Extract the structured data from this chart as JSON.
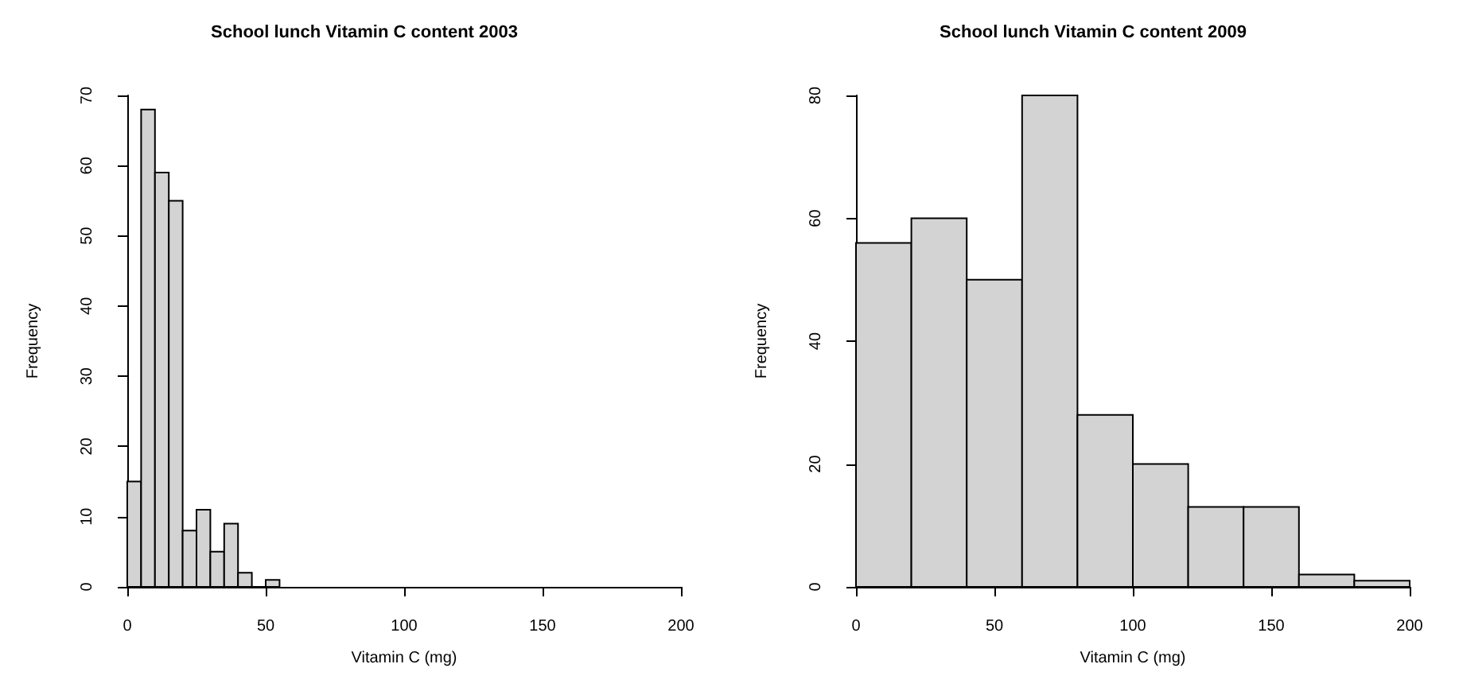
{
  "chart_data": [
    {
      "type": "histogram",
      "title": "School lunch Vitamin C content 2003",
      "xlabel": "Vitamin C (mg)",
      "ylabel": "Frequency",
      "bins": [
        0,
        5,
        10,
        15,
        20,
        25,
        30,
        35,
        40,
        45,
        50,
        55
      ],
      "values": [
        15,
        68,
        59,
        55,
        8,
        11,
        5,
        9,
        2,
        0,
        1
      ],
      "color": "#d3d3d3",
      "xlim": [
        0,
        200
      ],
      "xticks": [
        0,
        50,
        100,
        150,
        200
      ],
      "ylim": [
        0,
        70
      ],
      "yticks": [
        0,
        10,
        20,
        30,
        40,
        50,
        60,
        70
      ],
      "grid": false
    },
    {
      "type": "histogram",
      "title": "School lunch Vitamin C content 2009",
      "xlabel": "Vitamin C (mg)",
      "ylabel": "Frequency",
      "bins": [
        0,
        20,
        40,
        60,
        80,
        100,
        120,
        140,
        160,
        180,
        200
      ],
      "values": [
        56,
        60,
        50,
        80,
        28,
        20,
        13,
        13,
        2,
        1
      ],
      "color": "#d3d3d3",
      "xlim": [
        0,
        200
      ],
      "xticks": [
        0,
        50,
        100,
        150,
        200
      ],
      "ylim": [
        0,
        80
      ],
      "yticks": [
        0,
        20,
        40,
        60,
        80
      ],
      "grid": false
    }
  ]
}
